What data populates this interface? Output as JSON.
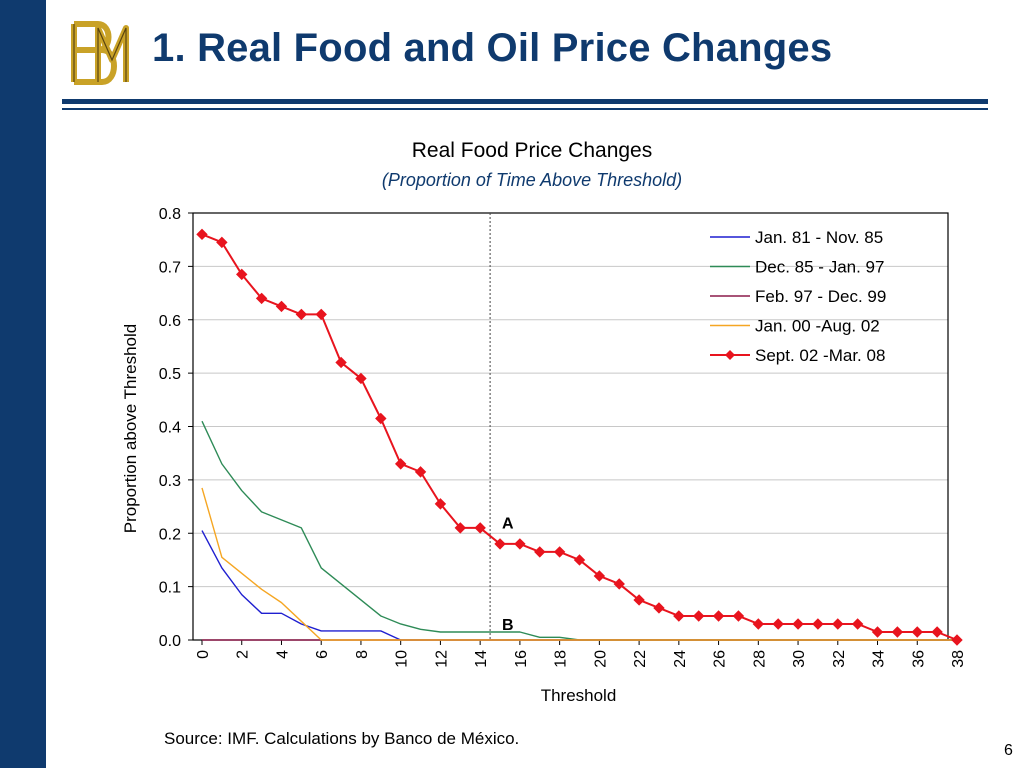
{
  "slide": {
    "title": "1. Real Food and Oil Price Changes",
    "logo_text": "BM",
    "source": "Source: IMF. Calculations by Banco de México.",
    "page_number": "6"
  },
  "colors": {
    "brand_navy": "#0f3a6e",
    "logo_gold": "#c9a227"
  },
  "chart_data": {
    "type": "line",
    "title": "Real Food Price Changes",
    "subtitle": "(Proportion of Time Above Threshold)",
    "xlabel": "Threshold",
    "ylabel": "Proportion above Threshold",
    "xlim": [
      0,
      38
    ],
    "ylim": [
      0,
      0.8
    ],
    "xticks": [
      0,
      2,
      4,
      6,
      8,
      10,
      12,
      14,
      16,
      18,
      20,
      22,
      24,
      26,
      28,
      30,
      32,
      34,
      36,
      38
    ],
    "yticks": [
      0.0,
      0.1,
      0.2,
      0.3,
      0.4,
      0.5,
      0.6,
      0.7,
      0.8
    ],
    "ytick_labels": [
      "0.0",
      "0.1",
      "0.2",
      "0.3",
      "0.4",
      "0.5",
      "0.6",
      "0.7",
      "0.8"
    ],
    "grid": "horizontal",
    "legend_position": "top-right",
    "reference_line": {
      "x": 14.5,
      "style": "dotted"
    },
    "annotations": [
      {
        "text": "A",
        "x": 15,
        "y": 0.22
      },
      {
        "text": "B",
        "x": 15,
        "y": 0.03
      }
    ],
    "series": [
      {
        "name": "Jan. 81 - Nov. 85",
        "color": "#1f1fd0",
        "marker": "none",
        "x": [
          0,
          1,
          2,
          3,
          4,
          5,
          6,
          7,
          8,
          9,
          10,
          11,
          12,
          13,
          14,
          15,
          16,
          17,
          18,
          19,
          20,
          21,
          22,
          23,
          24,
          25,
          26,
          27,
          28,
          29,
          30,
          31,
          32,
          33,
          34,
          35,
          36,
          37,
          38
        ],
        "y": [
          0.205,
          0.135,
          0.085,
          0.05,
          0.05,
          0.03,
          0.017,
          0.017,
          0.017,
          0.017,
          0,
          0,
          0,
          0,
          0,
          0,
          0,
          0,
          0,
          0,
          0,
          0,
          0,
          0,
          0,
          0,
          0,
          0,
          0,
          0,
          0,
          0,
          0,
          0,
          0,
          0,
          0,
          0,
          0
        ]
      },
      {
        "name": "Dec. 85 - Jan. 97",
        "color": "#2e8b57",
        "marker": "none",
        "x": [
          0,
          1,
          2,
          3,
          4,
          5,
          6,
          7,
          8,
          9,
          10,
          11,
          12,
          13,
          14,
          15,
          16,
          17,
          18,
          19,
          20,
          21,
          22,
          23,
          24,
          25,
          26,
          27,
          28,
          29,
          30,
          31,
          32,
          33,
          34,
          35,
          36,
          37,
          38
        ],
        "y": [
          0.41,
          0.33,
          0.28,
          0.24,
          0.225,
          0.21,
          0.135,
          0.105,
          0.075,
          0.045,
          0.03,
          0.02,
          0.015,
          0.015,
          0.015,
          0.015,
          0.015,
          0.005,
          0.005,
          0,
          0,
          0,
          0,
          0,
          0,
          0,
          0,
          0,
          0,
          0,
          0,
          0,
          0,
          0,
          0,
          0,
          0,
          0,
          0
        ]
      },
      {
        "name": "Feb. 97 - Dec. 99",
        "color": "#8b1a4a",
        "marker": "none",
        "x": [
          0,
          1,
          2,
          3,
          4,
          5,
          6,
          7,
          8,
          9,
          10,
          11,
          12,
          13,
          14,
          15,
          16,
          17,
          18,
          19,
          20,
          21,
          22,
          23,
          24,
          25,
          26,
          27,
          28,
          29,
          30,
          31,
          32,
          33,
          34,
          35,
          36,
          37,
          38
        ],
        "y": [
          0,
          0,
          0,
          0,
          0,
          0,
          0,
          0,
          0,
          0,
          0,
          0,
          0,
          0,
          0,
          0,
          0,
          0,
          0,
          0,
          0,
          0,
          0,
          0,
          0,
          0,
          0,
          0,
          0,
          0,
          0,
          0,
          0,
          0,
          0,
          0,
          0,
          0,
          0
        ]
      },
      {
        "name": "Jan. 00 -Aug. 02",
        "color": "#f5a623",
        "marker": "none",
        "x": [
          0,
          1,
          2,
          3,
          4,
          5,
          6,
          7,
          8,
          9,
          10,
          11,
          12,
          13,
          14,
          15,
          16,
          17,
          18,
          19,
          20,
          21,
          22,
          23,
          24,
          25,
          26,
          27,
          28,
          29,
          30,
          31,
          32,
          33,
          34,
          35,
          36,
          37,
          38
        ],
        "y": [
          0.285,
          0.155,
          0.125,
          0.095,
          0.07,
          0.035,
          0,
          0,
          0,
          0,
          0,
          0,
          0,
          0,
          0,
          0,
          0,
          0,
          0,
          0,
          0,
          0,
          0,
          0,
          0,
          0,
          0,
          0,
          0,
          0,
          0,
          0,
          0,
          0,
          0,
          0,
          0,
          0,
          0
        ]
      },
      {
        "name": "Sept. 02 -Mar. 08",
        "color": "#e8141e",
        "marker": "diamond",
        "x": [
          0,
          1,
          2,
          3,
          4,
          5,
          6,
          7,
          8,
          9,
          10,
          11,
          12,
          13,
          14,
          15,
          16,
          17,
          18,
          19,
          20,
          21,
          22,
          23,
          24,
          25,
          26,
          27,
          28,
          29,
          30,
          31,
          32,
          33,
          34,
          35,
          36,
          37,
          38
        ],
        "y": [
          0.76,
          0.745,
          0.685,
          0.64,
          0.625,
          0.61,
          0.61,
          0.52,
          0.49,
          0.415,
          0.33,
          0.315,
          0.255,
          0.21,
          0.21,
          0.18,
          0.18,
          0.165,
          0.165,
          0.15,
          0.12,
          0.105,
          0.075,
          0.06,
          0.045,
          0.045,
          0.045,
          0.045,
          0.03,
          0.03,
          0.03,
          0.03,
          0.03,
          0.03,
          0.015,
          0.015,
          0.015,
          0.015,
          0
        ]
      }
    ]
  }
}
